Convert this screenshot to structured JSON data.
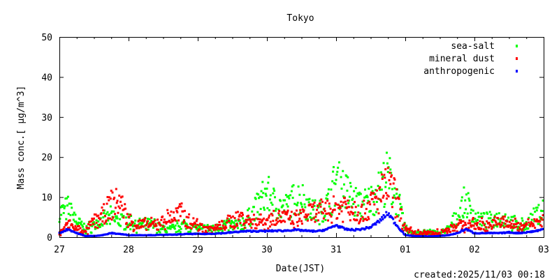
{
  "chart_data": {
    "type": "scatter",
    "title": "Tokyo",
    "xlabel": "Date(JST)",
    "ylabel": "Mass conc.[ μg/m^3]",
    "ylim": [
      0,
      50
    ],
    "yticks": [
      "0",
      "10",
      "20",
      "30",
      "40",
      "50"
    ],
    "xticks": [
      "27",
      "28",
      "29",
      "30",
      "31",
      "01",
      "02",
      "03"
    ],
    "xlim_days": [
      0,
      7
    ],
    "legend_position": "top-right",
    "series": [
      {
        "name": "sea-salt",
        "color": "#00ff00",
        "values": [
          6,
          7,
          4,
          2,
          3,
          4,
          5,
          4,
          4,
          3,
          3,
          3,
          2,
          2,
          3,
          3,
          2,
          2,
          2,
          3,
          3,
          3,
          5,
          8,
          11,
          8,
          7,
          9,
          10,
          7,
          6,
          8,
          14,
          12,
          9,
          8,
          9,
          12,
          15,
          10,
          2,
          1,
          1,
          1,
          1,
          2,
          5,
          9,
          5,
          4,
          4,
          5,
          4,
          3,
          3,
          5,
          7
        ]
      },
      {
        "name": "mineral dust",
        "color": "#ff0000",
        "values": [
          1,
          3,
          2,
          1,
          4,
          5,
          8,
          9,
          4,
          3,
          3,
          3,
          4,
          5,
          6,
          4,
          3,
          2,
          2,
          3,
          4,
          5,
          4,
          4,
          4,
          5,
          5,
          4,
          5,
          6,
          6,
          7,
          7,
          8,
          7,
          6,
          8,
          10,
          13,
          9,
          2,
          1,
          1,
          1,
          1,
          2,
          3,
          3,
          3,
          3,
          3,
          4,
          3,
          3,
          3,
          3,
          4
        ]
      },
      {
        "name": "anthropogenic",
        "color": "#0000ff",
        "values": [
          1,
          2,
          1,
          0.3,
          0.3,
          0.5,
          1,
          0.8,
          0.5,
          0.5,
          0.5,
          0.5,
          0.6,
          0.6,
          0.7,
          0.8,
          0.8,
          0.8,
          0.9,
          1,
          1.2,
          1.4,
          1.5,
          1.5,
          1.5,
          1.6,
          1.6,
          1.8,
          1.7,
          1.5,
          1.5,
          2,
          3,
          2,
          1.8,
          2,
          2.5,
          4,
          6,
          3,
          0.5,
          0.3,
          0.2,
          0.2,
          0.3,
          0.5,
          1,
          2,
          1,
          1,
          1,
          1,
          1.2,
          1,
          1.2,
          1.5,
          2
        ]
      }
    ]
  },
  "footer": {
    "created": "created:2025/11/03 00:18"
  }
}
